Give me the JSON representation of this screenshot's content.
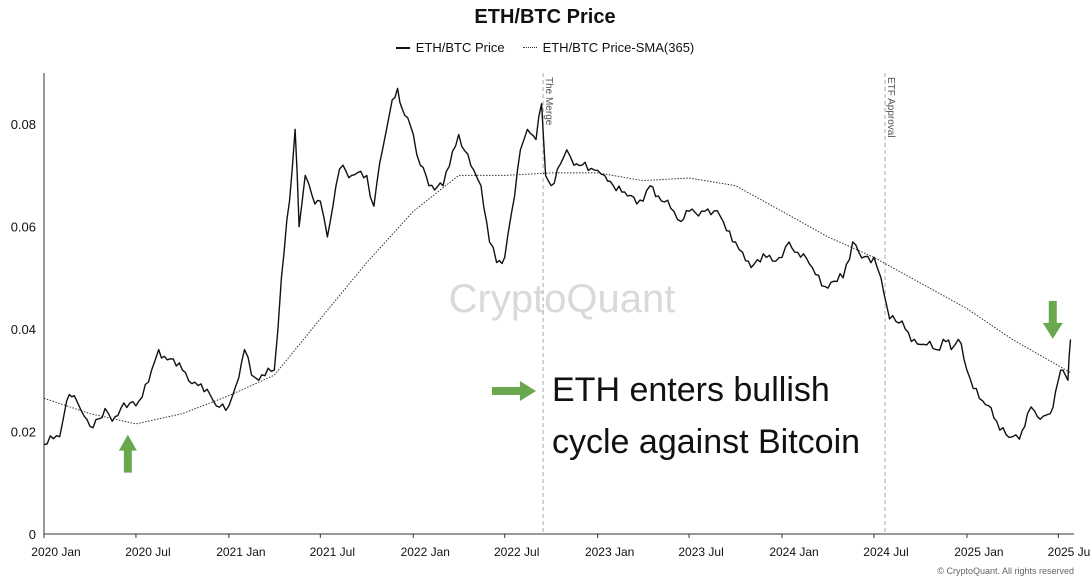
{
  "chart_data": {
    "type": "line",
    "title": "ETH/BTC Price",
    "xlabel": "",
    "ylabel": "",
    "xlim": [
      "2020-01-01",
      "2025-08-01"
    ],
    "ylim": [
      0,
      0.09
    ],
    "grid": false,
    "legend_placement": "top-center",
    "x_ticks": [
      "2020 Jan",
      "2020 Jul",
      "2021 Jan",
      "2021 Jul",
      "2022 Jan",
      "2022 Jul",
      "2023 Jan",
      "2023 Jul",
      "2024 Jan",
      "2024 Jul",
      "2025 Jan",
      "2025 Jul"
    ],
    "y_ticks": [
      "0",
      "0.02",
      "0.04",
      "0.06",
      "0.08"
    ],
    "series": [
      {
        "name": "ETH/BTC Price",
        "style": "solid",
        "color": "#111111",
        "x": [
          "2020-01-01",
          "2020-02-01",
          "2020-02-15",
          "2020-03-01",
          "2020-03-15",
          "2020-04-01",
          "2020-05-01",
          "2020-05-15",
          "2020-06-01",
          "2020-07-01",
          "2020-08-01",
          "2020-08-15",
          "2020-09-01",
          "2020-10-01",
          "2020-11-01",
          "2020-12-01",
          "2021-01-01",
          "2021-01-15",
          "2021-02-01",
          "2021-02-15",
          "2021-03-01",
          "2021-04-01",
          "2021-04-15",
          "2021-05-01",
          "2021-05-12",
          "2021-05-20",
          "2021-06-01",
          "2021-06-15",
          "2021-07-01",
          "2021-07-15",
          "2021-08-01",
          "2021-08-15",
          "2021-09-01",
          "2021-10-01",
          "2021-10-15",
          "2021-11-01",
          "2021-11-15",
          "2021-12-01",
          "2021-12-10",
          "2022-01-01",
          "2022-01-15",
          "2022-02-01",
          "2022-03-01",
          "2022-04-01",
          "2022-05-01",
          "2022-05-15",
          "2022-06-01",
          "2022-06-15",
          "2022-07-01",
          "2022-07-15",
          "2022-08-01",
          "2022-08-15",
          "2022-09-01",
          "2022-09-12",
          "2022-09-20",
          "2022-10-01",
          "2022-11-01",
          "2022-11-15",
          "2022-12-01",
          "2023-01-01",
          "2023-01-15",
          "2023-02-01",
          "2023-03-01",
          "2023-04-01",
          "2023-04-15",
          "2023-05-01",
          "2023-06-01",
          "2023-06-15",
          "2023-07-01",
          "2023-08-01",
          "2023-09-01",
          "2023-10-01",
          "2023-10-15",
          "2023-11-01",
          "2023-12-01",
          "2024-01-01",
          "2024-01-15",
          "2024-02-01",
          "2024-03-01",
          "2024-04-01",
          "2024-05-01",
          "2024-05-20",
          "2024-06-01",
          "2024-07-01",
          "2024-07-15",
          "2024-08-01",
          "2024-09-01",
          "2024-10-01",
          "2024-11-01",
          "2024-11-15",
          "2024-12-01",
          "2024-12-15",
          "2025-01-01",
          "2025-02-01",
          "2025-03-01",
          "2025-04-01",
          "2025-04-15",
          "2025-05-01",
          "2025-05-15",
          "2025-06-01",
          "2025-06-15",
          "2025-07-01",
          "2025-07-10",
          "2025-07-20",
          "2025-07-25"
        ],
        "values": [
          0.0175,
          0.019,
          0.026,
          0.027,
          0.024,
          0.021,
          0.0245,
          0.022,
          0.0245,
          0.025,
          0.032,
          0.036,
          0.034,
          0.032,
          0.029,
          0.026,
          0.025,
          0.029,
          0.036,
          0.031,
          0.03,
          0.032,
          0.05,
          0.065,
          0.079,
          0.06,
          0.07,
          0.066,
          0.065,
          0.058,
          0.068,
          0.072,
          0.07,
          0.07,
          0.064,
          0.075,
          0.082,
          0.087,
          0.083,
          0.078,
          0.072,
          0.068,
          0.068,
          0.078,
          0.071,
          0.068,
          0.057,
          0.053,
          0.054,
          0.063,
          0.075,
          0.079,
          0.077,
          0.084,
          0.07,
          0.068,
          0.075,
          0.072,
          0.072,
          0.071,
          0.07,
          0.068,
          0.066,
          0.065,
          0.068,
          0.066,
          0.063,
          0.061,
          0.063,
          0.063,
          0.062,
          0.057,
          0.055,
          0.052,
          0.054,
          0.054,
          0.057,
          0.055,
          0.052,
          0.048,
          0.05,
          0.057,
          0.055,
          0.054,
          0.05,
          0.042,
          0.04,
          0.037,
          0.036,
          0.038,
          0.036,
          0.038,
          0.032,
          0.026,
          0.022,
          0.019,
          0.0185,
          0.0235,
          0.024,
          0.023,
          0.0235,
          0.03,
          0.032,
          0.03,
          0.038
        ]
      },
      {
        "name": "ETH/BTC Price-SMA(365)",
        "style": "dotted",
        "color": "#333333",
        "x": [
          "2020-01-01",
          "2020-04-01",
          "2020-07-01",
          "2020-10-01",
          "2021-01-01",
          "2021-04-01",
          "2021-07-01",
          "2021-10-01",
          "2022-01-01",
          "2022-04-01",
          "2022-07-01",
          "2022-10-01",
          "2023-01-01",
          "2023-04-01",
          "2023-07-01",
          "2023-10-01",
          "2024-01-01",
          "2024-04-01",
          "2024-07-01",
          "2024-10-01",
          "2025-01-01",
          "2025-04-01",
          "2025-07-25"
        ],
        "values": [
          0.0265,
          0.0235,
          0.0215,
          0.0235,
          0.027,
          0.031,
          0.042,
          0.053,
          0.063,
          0.07,
          0.07,
          0.0705,
          0.0705,
          0.069,
          0.0695,
          0.068,
          0.063,
          0.058,
          0.054,
          0.049,
          0.044,
          0.038,
          0.0315
        ]
      }
    ],
    "annotations": [
      {
        "label": "The Merge",
        "x": "2022-09-15",
        "style": "dashed-vertical"
      },
      {
        "label": "ETF Approval",
        "x": "2024-07-23",
        "style": "dashed-vertical"
      }
    ],
    "callout": {
      "line1": "ETH enters bullish",
      "line2": "cycle against Bitcoin",
      "arrow_color": "#6aa84f"
    },
    "markers": [
      {
        "kind": "up-arrow",
        "x": "2020-06-15",
        "value": 0.0155,
        "color": "#6aa84f"
      },
      {
        "kind": "down-arrow",
        "x": "2025-06-20",
        "value": 0.042,
        "color": "#6aa84f"
      }
    ],
    "watermark": "CryptoQuant",
    "footer": "© CryptoQuant. All rights reserved"
  }
}
